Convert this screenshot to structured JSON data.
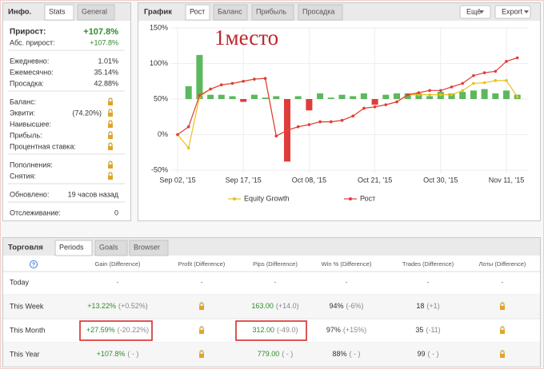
{
  "info": {
    "tabs": [
      "Инфо.",
      "Stats",
      "General"
    ],
    "groups": [
      [
        {
          "label": "Прирост:",
          "value": "+107.8%"
        },
        {
          "label": "Абс. прирост:",
          "value": "+107.8%"
        }
      ],
      [
        {
          "label": "Ежедневно:",
          "value": "1.01%"
        },
        {
          "label": "Ежемесячно:",
          "value": "35.14%"
        },
        {
          "label": "Просадка:",
          "value": "42.88%"
        }
      ],
      [
        {
          "label": "Баланс:",
          "locked": true
        },
        {
          "label": "Эквити:",
          "value": "(74.20%)",
          "locked": true
        },
        {
          "label": "Наивысшее:",
          "locked": true
        },
        {
          "label": "Прибыль:",
          "locked": true
        },
        {
          "label": "Процентная ставка:",
          "locked": true
        }
      ],
      [
        {
          "label": "Пополнения:",
          "locked": true
        },
        {
          "label": "Снятия:",
          "locked": true
        }
      ],
      [
        {
          "label": "Обновлено:",
          "value": "19 часов назад"
        }
      ],
      [
        {
          "label": "Отслеживание:",
          "value": "0"
        }
      ]
    ]
  },
  "chart_panel": {
    "tabs": [
      "График",
      "Рост",
      "Баланс",
      "Прибыль",
      "Просадка"
    ],
    "buttons": [
      "Ещё",
      "Export"
    ],
    "chart": {
      "type": "line",
      "annotation": "1место",
      "categories": [
        "Sep 02, '15",
        null,
        null,
        null,
        null,
        null,
        "Sep 17, '15",
        null,
        null,
        null,
        null,
        null,
        "Oct 08, '15",
        null,
        null,
        null,
        null,
        null,
        "Oct 21, '15",
        null,
        null,
        null,
        null,
        null,
        "Oct 30, '15",
        null,
        null,
        null,
        null,
        null,
        "Nov 11, '15",
        null
      ],
      "series": [
        {
          "type": "bar",
          "axis": "y2",
          "color": "#5cb85c",
          "negative_color": "#e03c3c",
          "values": [
            0,
            9,
            31,
            3,
            3,
            2,
            -2,
            3,
            1,
            2,
            -44,
            2,
            -8,
            4,
            1,
            3,
            2,
            4,
            -4,
            3,
            4,
            4,
            4,
            2,
            5,
            4,
            5,
            6,
            7,
            4,
            6,
            3
          ]
        },
        {
          "name": "Equity Growth",
          "color": "#e8c21a",
          "values": [
            0,
            -19,
            53,
            64,
            70,
            72,
            75,
            78,
            79,
            -2,
            6,
            11,
            14,
            18,
            18,
            20,
            26,
            37,
            39,
            42,
            46,
            56,
            56,
            56,
            56,
            56,
            62,
            72,
            73,
            76,
            76,
            53
          ]
        },
        {
          "name": "Рост",
          "color": "#e03c3c",
          "values": [
            0,
            11,
            55,
            64,
            70,
            72,
            75,
            78,
            79,
            -2,
            6,
            11,
            14,
            18,
            18,
            20,
            26,
            37,
            39,
            42,
            46,
            56,
            59,
            62,
            62,
            67,
            72,
            83,
            87,
            89,
            103,
            108
          ]
        }
      ],
      "ylim": [
        -50,
        150
      ],
      "yticks": [
        {
          "value": -50,
          "label": "-50%"
        },
        {
          "value": 0,
          "label": "0%"
        },
        {
          "value": 50,
          "label": "50%"
        },
        {
          "value": 100,
          "label": "100%"
        },
        {
          "value": 150,
          "label": "150%"
        }
      ],
      "y2lim": [
        -50,
        50
      ],
      "grid": true,
      "legend": "bottom"
    }
  },
  "trading": {
    "tabs": [
      "Торговля",
      "Periods",
      "Goals",
      "Browser"
    ],
    "header": [
      "Gain (Difference)",
      "Profit (Difference)",
      "Pips (Difference)",
      "Win % (Difference)",
      "Trades (Difference)",
      "Лоты (Difference)"
    ],
    "rows": [
      {
        "label": "Today",
        "cells": [
          {
            "main": "-"
          },
          {
            "main": "-"
          },
          {
            "main": "-"
          },
          {
            "main": "-"
          },
          {
            "main": "-"
          },
          {
            "main": "-"
          }
        ]
      },
      {
        "label": "This Week",
        "cells": [
          {
            "main": "+13.22%",
            "diff": "(+0.52%)"
          },
          null,
          {
            "main": "163.00",
            "diff": "(+14.0)"
          },
          {
            "main": "94%",
            "diff": "(-6%)"
          },
          {
            "main": "18",
            "diff": "(+1)"
          },
          null
        ]
      },
      {
        "label": "This Month",
        "cells": [
          {
            "main": "+27.59%",
            "diff": "(-20.22%)"
          },
          null,
          {
            "main": "312.00",
            "diff": "(-49.0)"
          },
          {
            "main": "97%",
            "diff": "(+15%)"
          },
          {
            "main": "35",
            "diff": "(-11)"
          },
          null
        ]
      },
      {
        "label": "This Year",
        "cells": [
          {
            "main": "+107.8%",
            "diff": "( - )"
          },
          null,
          {
            "main": "779.00",
            "diff": "( - )"
          },
          {
            "main": "88%",
            "diff": "( - )"
          },
          {
            "main": "99",
            "diff": "( - )"
          },
          null
        ]
      }
    ]
  }
}
